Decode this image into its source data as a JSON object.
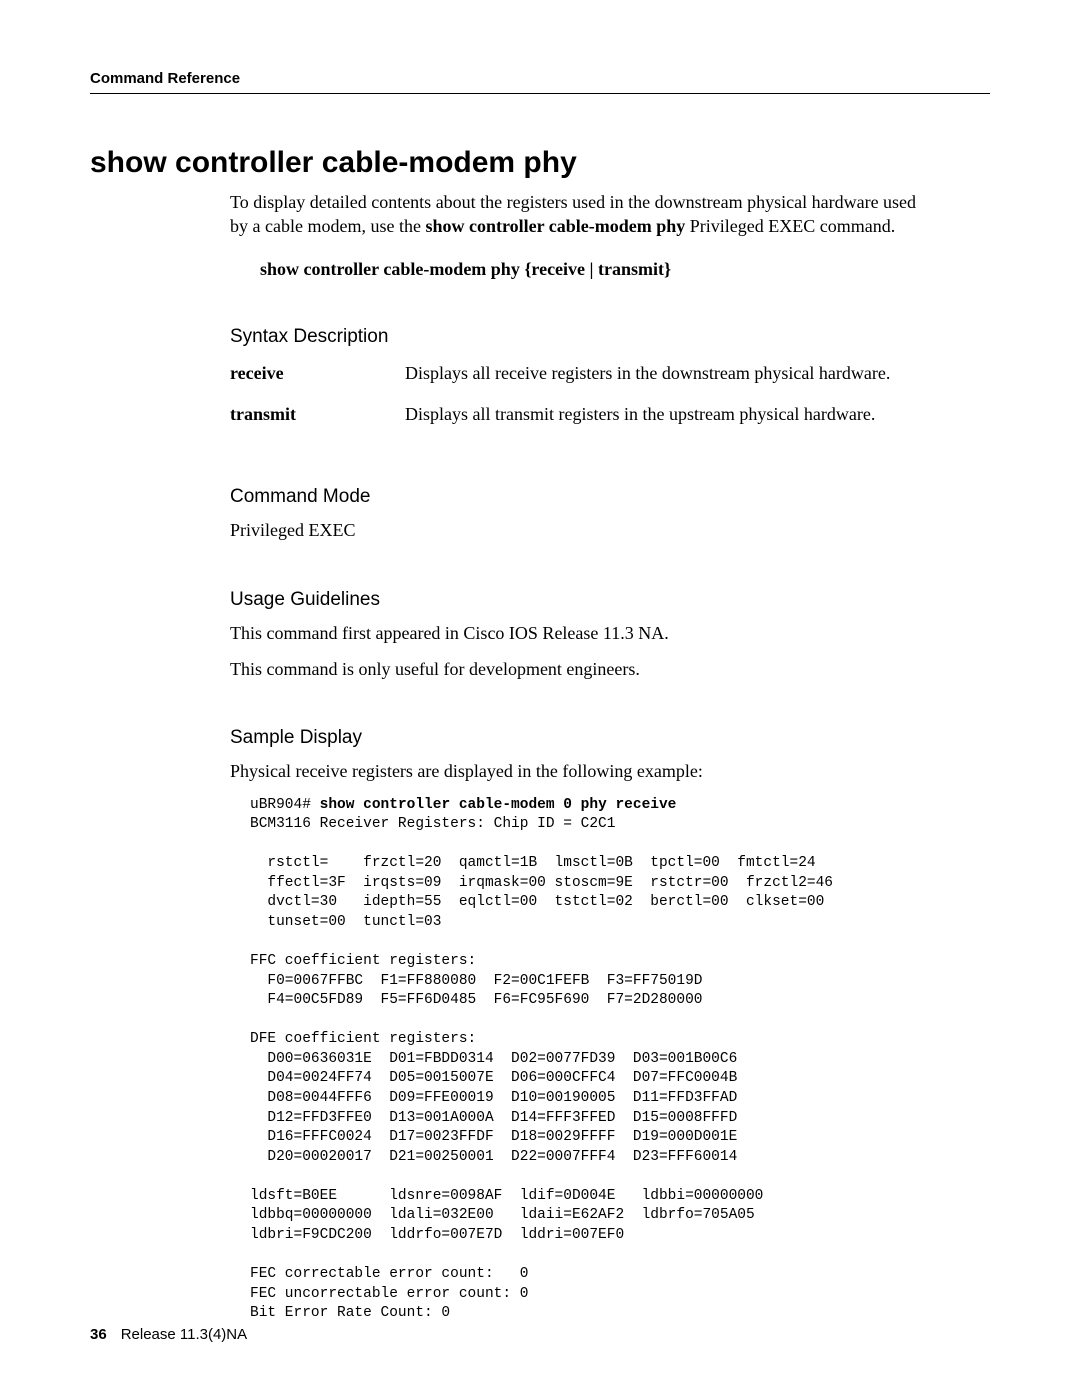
{
  "header": {
    "section": "Command Reference"
  },
  "title": "show controller cable-modem phy",
  "intro": {
    "p1_before": "To display detailed contents about the registers used in the downstream physical hardware used by a cable modem, use the ",
    "p1_bold": "show controller cable-modem phy",
    "p1_after": " Privileged EXEC command."
  },
  "syntax_line": "show controller cable-modem phy {receive | transmit}",
  "sections": {
    "syntax_desc": "Syntax Description",
    "command_mode": "Command Mode",
    "usage": "Usage Guidelines",
    "sample": "Sample Display"
  },
  "syntax_table": [
    {
      "term": "receive",
      "desc": "Displays all receive registers in the downstream physical hardware."
    },
    {
      "term": "transmit",
      "desc": "Displays all transmit registers in the upstream physical hardware."
    }
  ],
  "command_mode_text": "Privileged EXEC",
  "usage_p1": "This command first appeared in Cisco IOS Release 11.3 NA.",
  "usage_p2": "This command is only useful for development engineers.",
  "sample_intro": "Physical receive registers are displayed in the following example:",
  "sample_prompt": "uBR904# ",
  "sample_cmd": "show controller cable-modem 0 phy receive",
  "sample_body": "BCM3116 Receiver Registers: Chip ID = C2C1\n\n  rstctl=    frzctl=20  qamctl=1B  lmsctl=0B  tpctl=00  fmtctl=24\n  ffectl=3F  irqsts=09  irqmask=00 stoscm=9E  rstctr=00  frzctl2=46\n  dvctl=30   idepth=55  eqlctl=00  tstctl=02  berctl=00  clkset=00\n  tunset=00  tunctl=03\n\nFFC coefficient registers:\n  F0=0067FFBC  F1=FF880080  F2=00C1FEFB  F3=FF75019D\n  F4=00C5FD89  F5=FF6D0485  F6=FC95F690  F7=2D280000\n\nDFE coefficient registers:\n  D00=0636031E  D01=FBDD0314  D02=0077FD39  D03=001B00C6\n  D04=0024FF74  D05=0015007E  D06=000CFFC4  D07=FFC0004B\n  D08=0044FFF6  D09=FFE00019  D10=00190005  D11=FFD3FFAD\n  D12=FFD3FFE0  D13=001A000A  D14=FFF3FFED  D15=0008FFFD\n  D16=FFFC0024  D17=0023FFDF  D18=0029FFFF  D19=000D001E\n  D20=00020017  D21=00250001  D22=0007FFF4  D23=FFF60014\n\nldsft=B0EE      ldsnre=0098AF  ldif=0D004E   ldbbi=00000000\nldbbq=00000000  ldali=032E00   ldaii=E62AF2  ldbrfo=705A05\nldbri=F9CDC200  lddrfo=007E7D  lddri=007EF0\n\nFEC correctable error count:   0\nFEC uncorrectable error count: 0\nBit Error Rate Count: 0",
  "footer": {
    "page_num": "36",
    "release": "Release 11.3(4)NA"
  }
}
